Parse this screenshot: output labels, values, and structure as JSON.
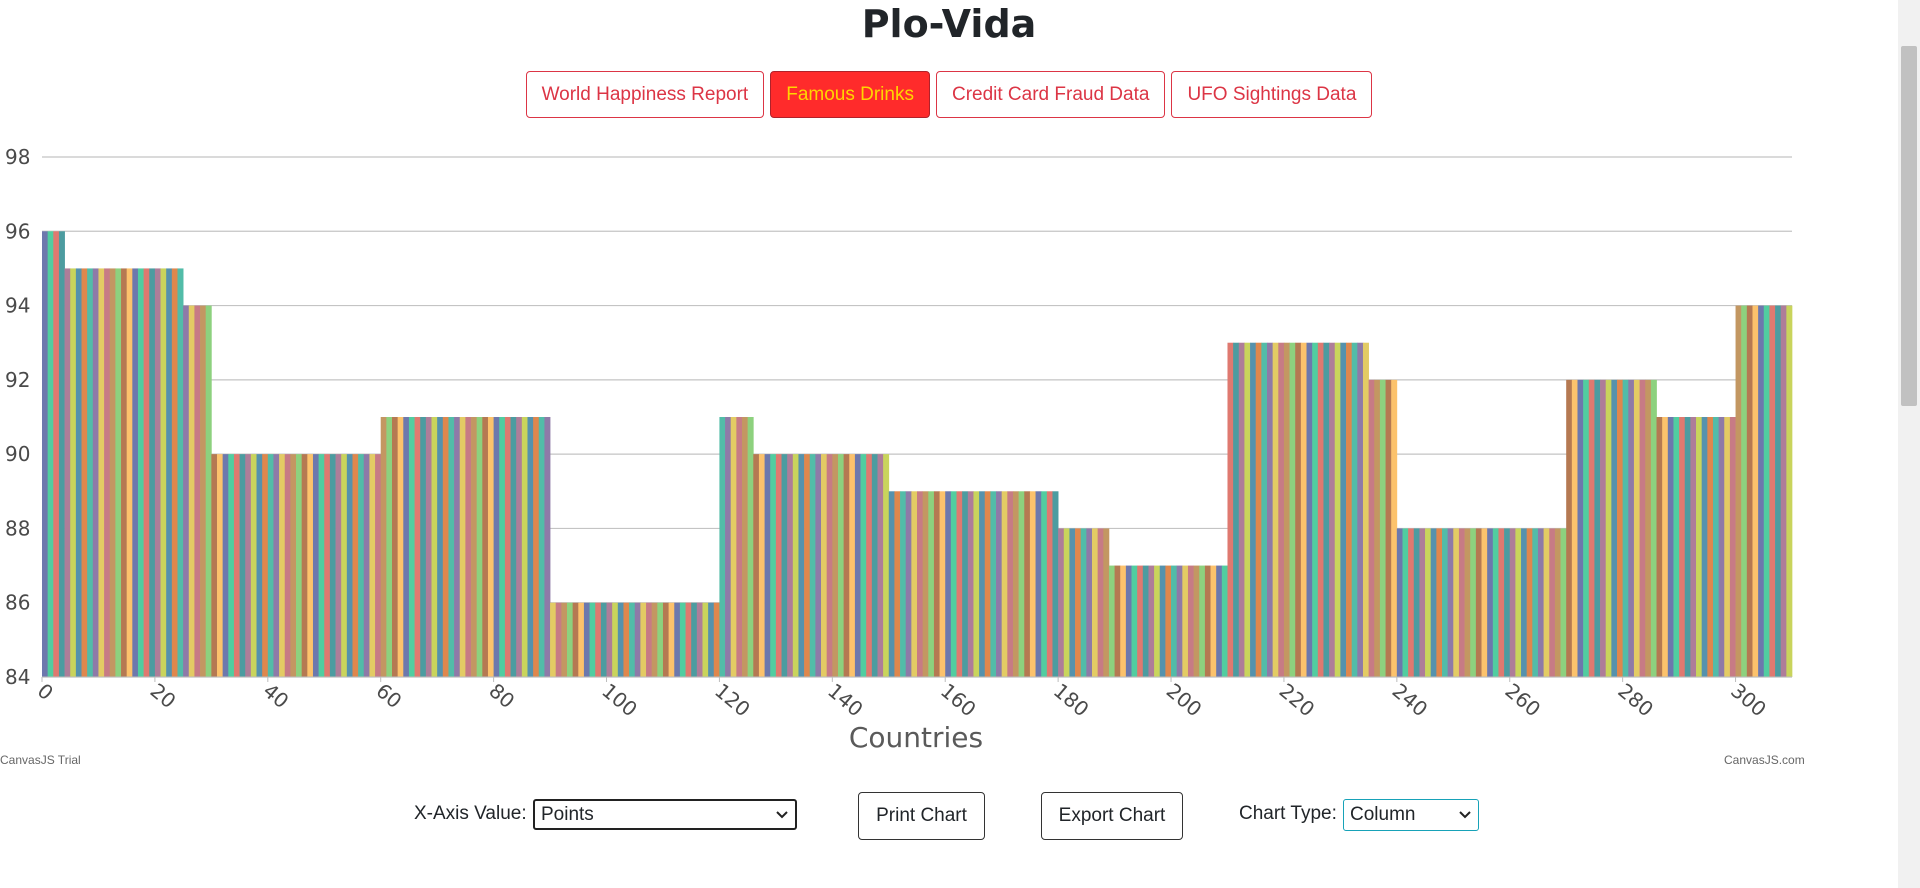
{
  "page": {
    "title": "Plo-Vida"
  },
  "nav": {
    "buttons": [
      {
        "label": "World Happiness Report",
        "active": false
      },
      {
        "label": "Famous Drinks",
        "active": true
      },
      {
        "label": "Credit Card Fraud Data",
        "active": false
      },
      {
        "label": "UFO Sightings Data",
        "active": false
      }
    ]
  },
  "chart_data": {
    "type": "bar",
    "title": "",
    "xlabel": "Countries",
    "ylabel": "",
    "xlim": [
      0,
      310
    ],
    "ylim": [
      84,
      98
    ],
    "y_ticks": [
      84,
      86,
      88,
      90,
      92,
      94,
      96,
      98
    ],
    "x_ticks": [
      0,
      20,
      40,
      60,
      80,
      100,
      120,
      140,
      160,
      180,
      200,
      220,
      240,
      260,
      280,
      300
    ],
    "grid": true,
    "legend": "none",
    "bar_colors": [
      "#6d78ad",
      "#51cda0",
      "#df7970",
      "#4c9ca0",
      "#ae7d99",
      "#c9d45c",
      "#5592ad",
      "#df874d",
      "#52bca8",
      "#8e7aa8",
      "#e3cb64",
      "#c77b85",
      "#c39762",
      "#8dd17e",
      "#b57952",
      "#fcc26c"
    ],
    "segments": [
      {
        "from": 0,
        "to": 4,
        "value": 96
      },
      {
        "from": 4,
        "to": 25,
        "value": 95
      },
      {
        "from": 25,
        "to": 30,
        "value": 94
      },
      {
        "from": 30,
        "to": 60,
        "value": 90
      },
      {
        "from": 60,
        "to": 90,
        "value": 91
      },
      {
        "from": 90,
        "to": 120,
        "value": 86
      },
      {
        "from": 120,
        "to": 126,
        "value": 91
      },
      {
        "from": 126,
        "to": 150,
        "value": 90
      },
      {
        "from": 150,
        "to": 180,
        "value": 89
      },
      {
        "from": 180,
        "to": 189,
        "value": 88
      },
      {
        "from": 189,
        "to": 210,
        "value": 87
      },
      {
        "from": 210,
        "to": 235,
        "value": 93
      },
      {
        "from": 235,
        "to": 240,
        "value": 92
      },
      {
        "from": 240,
        "to": 270,
        "value": 88
      },
      {
        "from": 270,
        "to": 286,
        "value": 92
      },
      {
        "from": 286,
        "to": 300,
        "value": 91
      },
      {
        "from": 300,
        "to": 310,
        "value": 94
      }
    ]
  },
  "credits": {
    "left": "CanvasJS Trial",
    "right": "CanvasJS.com"
  },
  "controls": {
    "x_axis_label": "X-Axis Value:",
    "x_axis_value": "Points",
    "print_label": "Print Chart",
    "export_label": "Export Chart",
    "chart_type_label": "Chart Type:",
    "chart_type_value": "Column",
    "dropdown_icon": "chevron-down-icon"
  }
}
